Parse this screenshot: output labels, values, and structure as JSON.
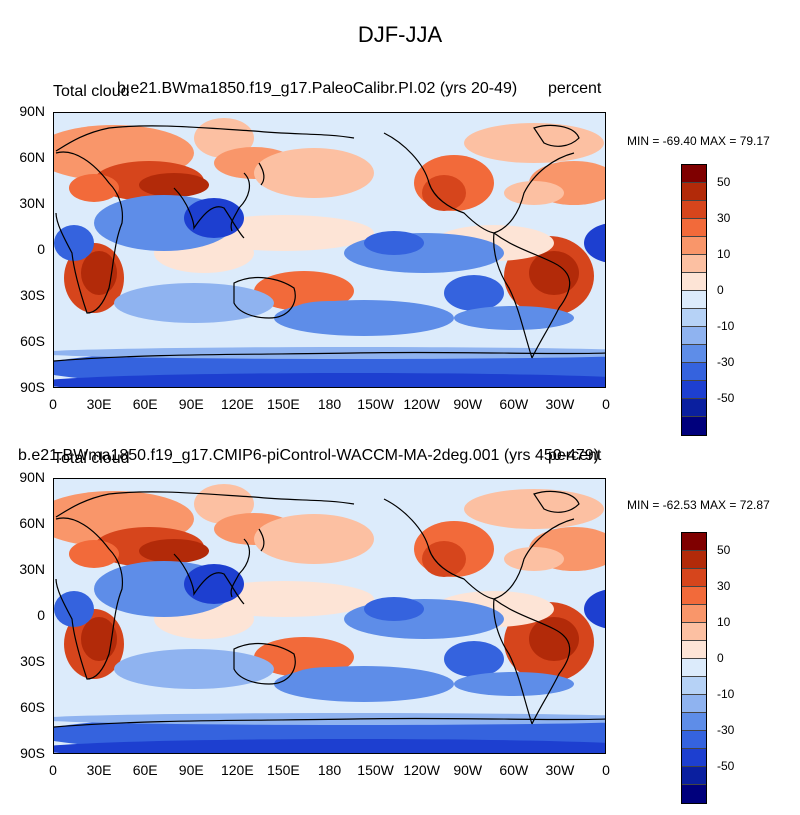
{
  "title": "DJF-JJA",
  "panels": [
    {
      "left_label": "Total cloud",
      "center_label": "b.e21.BWma1850.f19_g17.PaleoCalibr.PI.02 (yrs 20-49)",
      "right_label": "percent",
      "min_max": "MIN = -69.40 MAX =  79.17"
    },
    {
      "left_label": "Total cloud",
      "center_label": "b.e21.BWma1850.f19_g17.CMIP6-piControl-WACCM-MA-2deg.001 (yrs 450-479)",
      "right_label": "percent",
      "min_max": "MIN = -62.53 MAX =  72.87"
    }
  ],
  "lat_ticks": [
    "90N",
    "60N",
    "30N",
    "0",
    "30S",
    "60S",
    "90S"
  ],
  "lon_ticks": [
    "0",
    "30E",
    "60E",
    "90E",
    "120E",
    "150E",
    "180",
    "150W",
    "120W",
    "90W",
    "60W",
    "30W",
    "0"
  ],
  "colorbar": {
    "labels": [
      "50",
      "30",
      "10",
      "0",
      "-10",
      "-30",
      "-50"
    ],
    "colors": [
      "#7f0000",
      "#b22a09",
      "#d6451c",
      "#f26a3a",
      "#f9966a",
      "#fcc0a2",
      "#fde4d6",
      "#dcebfb",
      "#b6d2f6",
      "#8fb3f0",
      "#5e8de8",
      "#3563de",
      "#1d3fd0",
      "#0a1f9f",
      "#00007c"
    ]
  },
  "colors": {
    "land_outline": "#000000",
    "background": "#ffffff"
  }
}
